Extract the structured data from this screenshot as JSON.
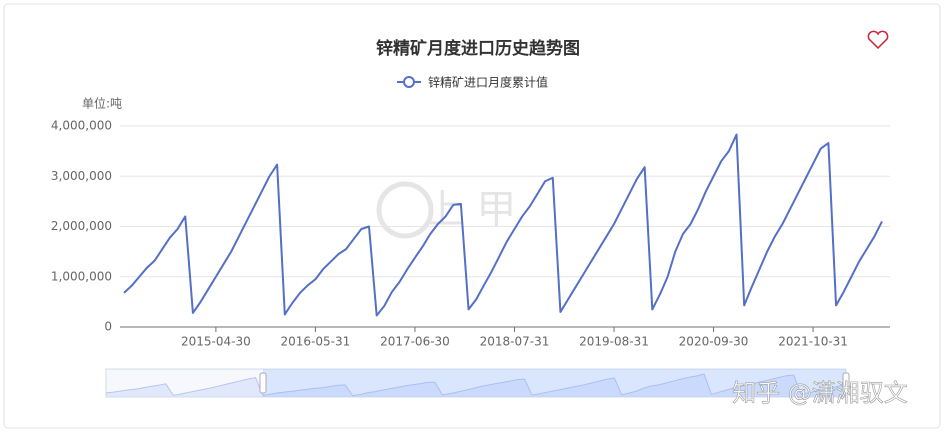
{
  "chart_data": {
    "type": "line",
    "title": "锌精矿月度进口历史趋势图",
    "y_unit_label": "单位:吨",
    "watermark": "知乎 @潇湘驭文",
    "x": [
      "2014-04-30",
      "2014-05-31",
      "2014-06-30",
      "2014-07-31",
      "2014-08-31",
      "2014-09-30",
      "2014-10-31",
      "2014-11-30",
      "2014-12-31",
      "2015-01-31",
      "2015-02-28",
      "2015-03-31",
      "2015-04-30",
      "2015-05-31",
      "2015-06-30",
      "2015-07-31",
      "2015-08-31",
      "2015-09-30",
      "2015-10-31",
      "2015-11-30",
      "2015-12-31",
      "2016-01-31",
      "2016-02-29",
      "2016-03-31",
      "2016-04-30",
      "2016-05-31",
      "2016-06-30",
      "2016-07-31",
      "2016-08-31",
      "2016-09-30",
      "2016-10-31",
      "2016-11-30",
      "2016-12-31",
      "2017-01-31",
      "2017-02-28",
      "2017-03-31",
      "2017-04-30",
      "2017-05-31",
      "2017-06-30",
      "2017-07-31",
      "2017-08-31",
      "2017-09-30",
      "2017-10-31",
      "2017-11-30",
      "2017-12-31",
      "2018-01-31",
      "2018-02-28",
      "2018-03-31",
      "2018-04-30",
      "2018-05-31",
      "2018-06-30",
      "2018-07-31",
      "2018-08-31",
      "2018-09-30",
      "2018-10-31",
      "2018-11-30",
      "2018-12-31",
      "2019-01-31",
      "2019-02-28",
      "2019-03-31",
      "2019-04-30",
      "2019-05-31",
      "2019-06-30",
      "2019-07-31",
      "2019-08-31",
      "2019-09-30",
      "2019-10-31",
      "2019-11-30",
      "2019-12-31",
      "2020-01-31",
      "2020-02-29",
      "2020-03-31",
      "2020-04-30",
      "2020-05-31",
      "2020-06-30",
      "2020-07-31",
      "2020-08-31",
      "2020-09-30",
      "2020-10-31",
      "2020-11-30",
      "2020-12-31",
      "2021-01-31",
      "2021-02-28",
      "2021-03-31",
      "2021-04-30",
      "2021-05-31",
      "2021-06-30",
      "2021-07-31",
      "2021-08-31",
      "2021-09-30",
      "2021-10-31",
      "2021-11-30",
      "2021-12-31",
      "2022-01-31",
      "2022-02-28",
      "2022-03-31",
      "2022-04-30",
      "2022-05-31",
      "2022-06-30",
      "2022-07-31"
    ],
    "series": [
      {
        "name": "锌精矿进口月度累计值",
        "color": "#5470c6",
        "values": [
          680000,
          820000,
          1000000,
          1180000,
          1320000,
          1550000,
          1780000,
          1950000,
          2200000,
          280000,
          500000,
          750000,
          1000000,
          1250000,
          1500000,
          1800000,
          2100000,
          2400000,
          2700000,
          3000000,
          3230000,
          250000,
          480000,
          680000,
          830000,
          950000,
          1150000,
          1300000,
          1450000,
          1550000,
          1750000,
          1950000,
          2000000,
          230000,
          420000,
          700000,
          900000,
          1150000,
          1380000,
          1600000,
          1850000,
          2050000,
          2200000,
          2430000,
          2450000,
          350000,
          550000,
          830000,
          1100000,
          1400000,
          1700000,
          1950000,
          2200000,
          2400000,
          2650000,
          2900000,
          2970000,
          300000,
          550000,
          800000,
          1050000,
          1300000,
          1550000,
          1800000,
          2050000,
          2350000,
          2650000,
          2950000,
          3180000,
          350000,
          650000,
          1000000,
          1500000,
          1850000,
          2050000,
          2350000,
          2700000,
          3000000,
          3300000,
          3500000,
          3830000,
          430000,
          800000,
          1150000,
          1500000,
          1800000,
          2050000,
          2350000,
          2650000,
          2950000,
          3250000,
          3550000,
          3660000,
          430000,
          700000,
          1000000,
          1300000,
          1550000,
          1800000,
          2100000
        ]
      }
    ],
    "xticks": [
      "2015-04-30",
      "2016-05-31",
      "2017-06-30",
      "2018-07-31",
      "2019-08-31",
      "2020-09-30",
      "2021-10-31"
    ],
    "ylim": [
      0,
      4000000
    ],
    "yticks": [
      0,
      {
        "value": 1000000,
        "label": "1,000,000"
      },
      {
        "value": 2000000,
        "label": "2,000,000"
      },
      {
        "value": 3000000,
        "label": "3,000,000"
      },
      {
        "value": 4000000,
        "label": "4,000,000"
      }
    ],
    "grid": true,
    "legend": "top"
  }
}
